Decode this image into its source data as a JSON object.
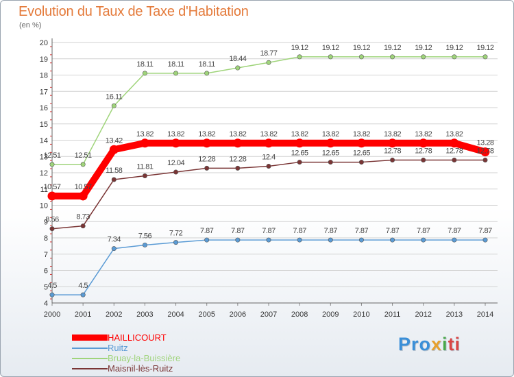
{
  "title": "Evolution du Taux de Taxe d'Habitation",
  "unit": "(en %)",
  "logo": {
    "part1": "Pro",
    "part2": "x",
    "part3": "i",
    "part4": "ti"
  },
  "chart_data": {
    "type": "line",
    "x": [
      "2000",
      "2001",
      "2002",
      "2003",
      "2004",
      "2005",
      "2006",
      "2007",
      "2008",
      "2009",
      "2010",
      "2011",
      "2012",
      "2013",
      "2014"
    ],
    "ylim": [
      4,
      20
    ],
    "yticks": [
      "4",
      "5",
      "6",
      "7",
      "8",
      "9",
      "10",
      "11",
      "12",
      "13",
      "14",
      "15",
      "16",
      "17",
      "18",
      "19",
      "20"
    ],
    "grid": "horizontal",
    "legend_position": "bottom-left",
    "series": [
      {
        "name": "HAILLICOURT",
        "color": "#ff0000",
        "label_color": "#444444",
        "style": "thick",
        "values": [
          10.57,
          10.57,
          13.42,
          13.82,
          13.82,
          13.82,
          13.82,
          13.82,
          13.82,
          13.82,
          13.82,
          13.82,
          13.82,
          13.82,
          13.28
        ],
        "labels": [
          "10.57",
          "10.57",
          "13.42",
          "13.82",
          "13.82",
          "13.82",
          "13.82",
          "13.82",
          "13.82",
          "13.82",
          "13.82",
          "13.82",
          "13.82",
          "13.82",
          "13.28"
        ]
      },
      {
        "name": "Ruitz",
        "color": "#5b9bd5",
        "label_color": "#444444",
        "style": "thin",
        "values": [
          4.5,
          4.5,
          7.34,
          7.56,
          7.72,
          7.87,
          7.87,
          7.87,
          7.87,
          7.87,
          7.87,
          7.87,
          7.87,
          7.87,
          7.87
        ],
        "labels": [
          "4.5",
          "4.5",
          "7.34",
          "7.56",
          "7.72",
          "7.87",
          "7.87",
          "7.87",
          "7.87",
          "7.87",
          "7.87",
          "7.87",
          "7.87",
          "7.87",
          "7.87"
        ]
      },
      {
        "name": "Bruay-la-Buissière",
        "color": "#9fd47a",
        "label_color": "#444444",
        "style": "thin",
        "values": [
          12.51,
          12.51,
          16.11,
          18.11,
          18.11,
          18.11,
          18.44,
          18.77,
          19.12,
          19.12,
          19.12,
          19.12,
          19.12,
          19.12,
          19.12
        ],
        "labels": [
          "12.51",
          "12.51",
          "16.11",
          "18.11",
          "18.11",
          "18.11",
          "18.44",
          "18.77",
          "19.12",
          "19.12",
          "19.12",
          "19.12",
          "19.12",
          "19.12",
          "19.12"
        ]
      },
      {
        "name": "Maisnil-lès-Ruitz",
        "color": "#7a3535",
        "label_color": "#444444",
        "style": "thin",
        "values": [
          8.56,
          8.73,
          11.58,
          11.81,
          12.04,
          12.28,
          12.28,
          12.4,
          12.65,
          12.65,
          12.65,
          12.78,
          12.78,
          12.78,
          12.78
        ],
        "labels": [
          "8.56",
          "8.73",
          "11.58",
          "11.81",
          "12.04",
          "12.28",
          "12.28",
          "12.4",
          "12.65",
          "12.65",
          "12.65",
          "12.78",
          "12.78",
          "12.78",
          "12.78"
        ]
      }
    ]
  }
}
